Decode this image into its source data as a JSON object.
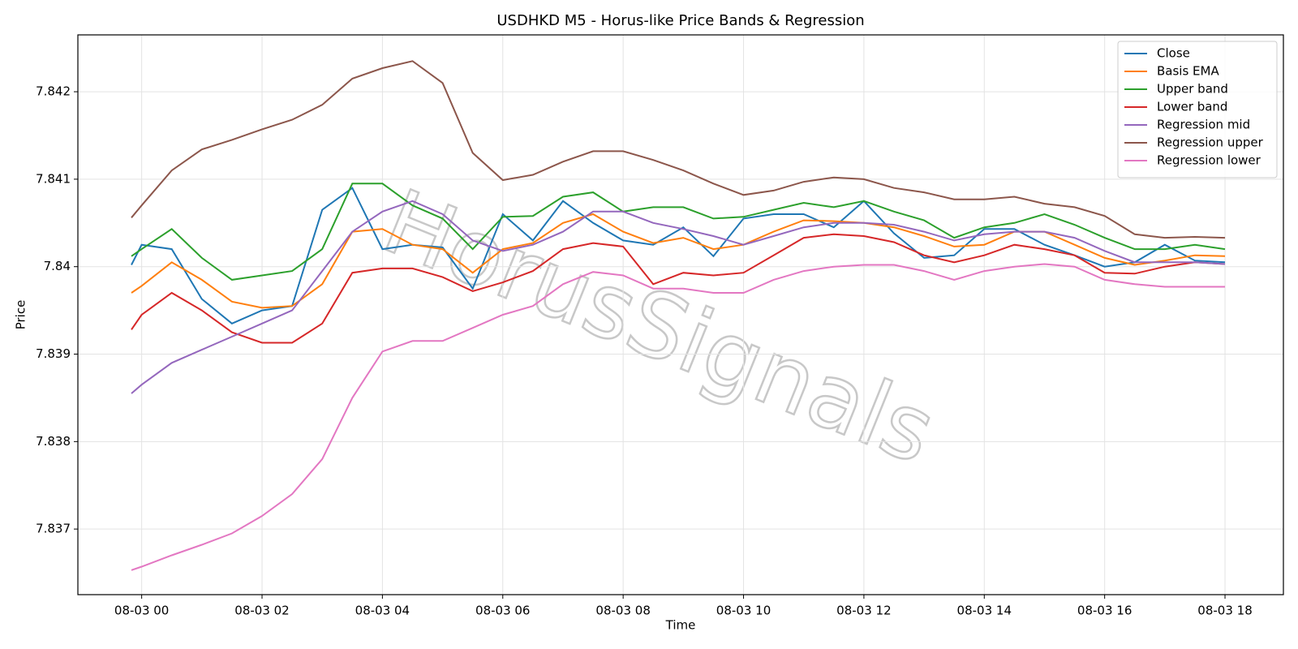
{
  "chart_data": {
    "type": "line",
    "title": "USDHKD M5 - Horus-like Price Bands & Regression",
    "xlabel": "Time",
    "ylabel": "Price",
    "watermark": "HorusSignals",
    "x": [
      -0.17,
      0,
      0.5,
      1,
      1.5,
      2,
      2.5,
      3,
      3.5,
      4,
      4.5,
      5,
      5.5,
      6,
      6.5,
      7,
      7.5,
      8,
      8.5,
      9,
      9.5,
      10,
      10.5,
      11,
      11.5,
      12,
      12.5,
      13,
      13.5,
      14,
      14.5,
      15,
      15.5,
      16,
      16.5,
      17,
      17.5,
      18
    ],
    "xlim": [
      -1.06,
      18.97
    ],
    "xticks": [
      {
        "value": 0,
        "label": "08-03 00"
      },
      {
        "value": 2,
        "label": "08-03 02"
      },
      {
        "value": 4,
        "label": "08-03 04"
      },
      {
        "value": 6,
        "label": "08-03 06"
      },
      {
        "value": 8,
        "label": "08-03 08"
      },
      {
        "value": 10,
        "label": "08-03 10"
      },
      {
        "value": 12,
        "label": "08-03 12"
      },
      {
        "value": 14,
        "label": "08-03 14"
      },
      {
        "value": 16,
        "label": "08-03 16"
      },
      {
        "value": 18,
        "label": "08-03 18"
      }
    ],
    "ylim": [
      7.83625,
      7.84265
    ],
    "yticks": [
      7.837,
      7.838,
      7.839,
      7.84,
      7.841,
      7.842
    ],
    "grid": true,
    "legend": "upper right",
    "series": [
      {
        "name": "Close",
        "color": "#1f77b4",
        "values": [
          7.84002,
          7.84025,
          7.8402,
          7.83963,
          7.83935,
          7.8395,
          7.83955,
          7.84065,
          7.8409,
          7.8402,
          7.84025,
          7.84022,
          7.83975,
          7.8406,
          7.8403,
          7.84075,
          7.8405,
          7.8403,
          7.84025,
          7.84045,
          7.84012,
          7.84055,
          7.8406,
          7.8406,
          7.84045,
          7.84075,
          7.84038,
          7.8401,
          7.84013,
          7.84043,
          7.84043,
          7.84025,
          7.84013,
          7.84,
          7.84005,
          7.84025,
          7.84007,
          7.84005
        ]
      },
      {
        "name": "Basis EMA",
        "color": "#ff7f0e",
        "values": [
          7.8397,
          7.83978,
          7.84005,
          7.83985,
          7.8396,
          7.83953,
          7.83955,
          7.8398,
          7.8404,
          7.84043,
          7.84025,
          7.8402,
          7.83993,
          7.8402,
          7.84027,
          7.8405,
          7.8406,
          7.8404,
          7.84027,
          7.84033,
          7.8402,
          7.84025,
          7.8404,
          7.84053,
          7.84052,
          7.8405,
          7.84045,
          7.84035,
          7.84023,
          7.84025,
          7.8404,
          7.8404,
          7.84025,
          7.8401,
          7.84002,
          7.84007,
          7.84013,
          7.84012
        ]
      },
      {
        "name": "Upper band",
        "color": "#2ca02c",
        "values": [
          7.84012,
          7.8402,
          7.84043,
          7.8401,
          7.83985,
          7.8399,
          7.83995,
          7.8402,
          7.84095,
          7.84095,
          7.8407,
          7.84055,
          7.8402,
          7.84057,
          7.84058,
          7.8408,
          7.84085,
          7.84063,
          7.84068,
          7.84068,
          7.84055,
          7.84057,
          7.84065,
          7.84073,
          7.84068,
          7.84075,
          7.84063,
          7.84053,
          7.84033,
          7.84045,
          7.8405,
          7.8406,
          7.84048,
          7.84033,
          7.8402,
          7.8402,
          7.84025,
          7.8402
        ]
      },
      {
        "name": "Lower band",
        "color": "#d62728",
        "values": [
          7.83928,
          7.83945,
          7.8397,
          7.8395,
          7.83925,
          7.83913,
          7.83913,
          7.83935,
          7.83993,
          7.83998,
          7.83998,
          7.83988,
          7.83972,
          7.83982,
          7.83995,
          7.8402,
          7.84027,
          7.84023,
          7.8398,
          7.83993,
          7.8399,
          7.83993,
          7.84013,
          7.84033,
          7.84037,
          7.84035,
          7.84028,
          7.84013,
          7.84005,
          7.84013,
          7.84025,
          7.8402,
          7.84013,
          7.83993,
          7.83992,
          7.84,
          7.84005,
          7.84003
        ]
      },
      {
        "name": "Regression mid",
        "color": "#9467bd",
        "values": [
          7.83855,
          7.83865,
          7.8389,
          7.83905,
          7.8392,
          7.83935,
          7.8395,
          7.83995,
          7.8404,
          7.84063,
          7.84075,
          7.8406,
          7.8403,
          7.84018,
          7.84025,
          7.8404,
          7.84063,
          7.84063,
          7.8405,
          7.84043,
          7.84035,
          7.84025,
          7.84035,
          7.84045,
          7.8405,
          7.8405,
          7.84048,
          7.8404,
          7.8403,
          7.84037,
          7.8404,
          7.8404,
          7.84033,
          7.84018,
          7.84005,
          7.84005,
          7.84005,
          7.84003
        ]
      },
      {
        "name": "Regression upper",
        "color": "#8c564b",
        "values": [
          7.84056,
          7.8407,
          7.8411,
          7.84134,
          7.84145,
          7.84157,
          7.84168,
          7.84185,
          7.84215,
          7.84227,
          7.84235,
          7.8421,
          7.8413,
          7.84099,
          7.84105,
          7.8412,
          7.84132,
          7.84132,
          7.84122,
          7.8411,
          7.84095,
          7.84082,
          7.84087,
          7.84097,
          7.84102,
          7.841,
          7.8409,
          7.84085,
          7.84077,
          7.84077,
          7.8408,
          7.84072,
          7.84068,
          7.84058,
          7.84037,
          7.84033,
          7.84034,
          7.84033
        ]
      },
      {
        "name": "Regression lower",
        "color": "#e377c2",
        "values": [
          7.83653,
          7.83657,
          7.8367,
          7.83682,
          7.83695,
          7.83715,
          7.8374,
          7.8378,
          7.8385,
          7.83903,
          7.83915,
          7.83915,
          7.8393,
          7.83945,
          7.83955,
          7.8398,
          7.83994,
          7.8399,
          7.83975,
          7.83975,
          7.8397,
          7.8397,
          7.83985,
          7.83995,
          7.84,
          7.84002,
          7.84002,
          7.83995,
          7.83985,
          7.83995,
          7.84,
          7.84003,
          7.84,
          7.83985,
          7.8398,
          7.83977,
          7.83977,
          7.83977
        ]
      }
    ]
  }
}
